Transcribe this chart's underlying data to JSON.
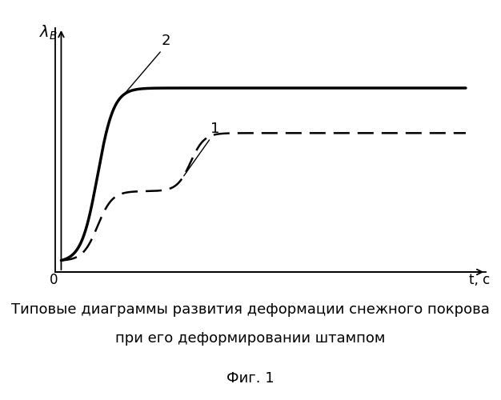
{
  "title_line1": "Типовые диаграммы развития деформации снежного покрова",
  "title_line2": "при его деформировании штампом",
  "fig_caption": "Фиг. 1",
  "ylabel": "$\\lambda_B$",
  "xlabel": "t, c",
  "origin_label": "0",
  "curve2_label": "2",
  "curve1_label": "1",
  "background_color": "#ffffff",
  "curve2_color": "#000000",
  "curve1_color": "#000000",
  "curve2_linewidth": 2.5,
  "curve1_linewidth": 1.8,
  "title_fontsize": 13,
  "caption_fontsize": 13,
  "axis_label_fontsize": 13,
  "curve_label_fontsize": 13
}
